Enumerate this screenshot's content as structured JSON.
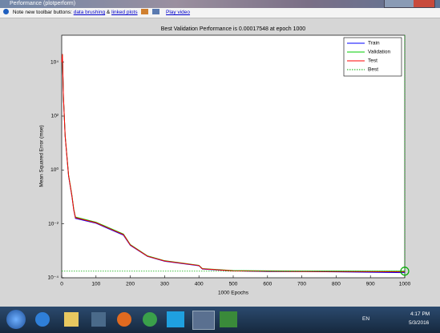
{
  "window": {
    "title": "Performance (plotperform)"
  },
  "toolbar": {
    "note": "Note new toolbar buttons:",
    "link1": "data brushing",
    "amp": "&",
    "link2": "linked plots",
    "video": "Play video"
  },
  "taskbar": {
    "lang": "EN",
    "time": "4:17 PM",
    "date": "5/3/2016"
  },
  "chart_data": {
    "type": "line",
    "title": "Best Validation Performance is 0.00017548 at epoch 1000",
    "xlabel": "1000 Epochs",
    "ylabel": "Mean Squared Error  (mse)",
    "log_y": true,
    "legend": "upper right",
    "x": [
      0,
      2,
      5,
      10,
      20,
      30,
      35,
      40,
      100,
      180,
      200,
      250,
      300,
      400,
      410,
      500,
      600,
      700,
      800,
      900,
      1000
    ],
    "series": [
      {
        "name": "Train",
        "color": "#0000ff",
        "values": [
          10000,
          20000,
          500,
          18,
          0.6,
          0.1,
          0.033,
          0.016,
          0.0105,
          0.0038,
          0.0016,
          0.00062,
          0.00041,
          0.00028,
          0.00021,
          0.00018,
          0.00017,
          0.00017,
          0.000165,
          0.00016,
          0.000155
        ]
      },
      {
        "name": "Validation",
        "color": "#00cc00",
        "values": [
          10000,
          20000,
          520,
          19,
          0.65,
          0.11,
          0.036,
          0.018,
          0.0115,
          0.0042,
          0.0017,
          0.00065,
          0.00043,
          0.00029,
          0.00022,
          0.000185,
          0.00018,
          0.000178,
          0.000177,
          0.000176,
          0.00017548
        ]
      },
      {
        "name": "Test",
        "color": "#ff0000",
        "values": [
          10000,
          20000,
          510,
          18.5,
          0.62,
          0.105,
          0.034,
          0.017,
          0.011,
          0.004,
          0.00165,
          0.00063,
          0.00042,
          0.000285,
          0.000215,
          0.00018,
          0.000175,
          0.000172,
          0.00017,
          0.000168,
          0.000165
        ]
      }
    ],
    "best": {
      "name": "Best",
      "color": "#00aa00",
      "epoch": 1000,
      "value": 0.00017548
    },
    "xlim": [
      0,
      1000
    ],
    "xticks": [
      0,
      100,
      200,
      300,
      400,
      500,
      600,
      700,
      800,
      900,
      1000
    ],
    "ylim": [
      0.0001,
      100000
    ],
    "yticks": [
      {
        "value": 0.0001,
        "label": "10⁻⁴"
      },
      {
        "value": 0.01,
        "label": "10⁻²"
      },
      {
        "value": 1,
        "label": "10⁰"
      },
      {
        "value": 100,
        "label": "10²"
      },
      {
        "value": 10000,
        "label": "10⁴"
      }
    ]
  }
}
